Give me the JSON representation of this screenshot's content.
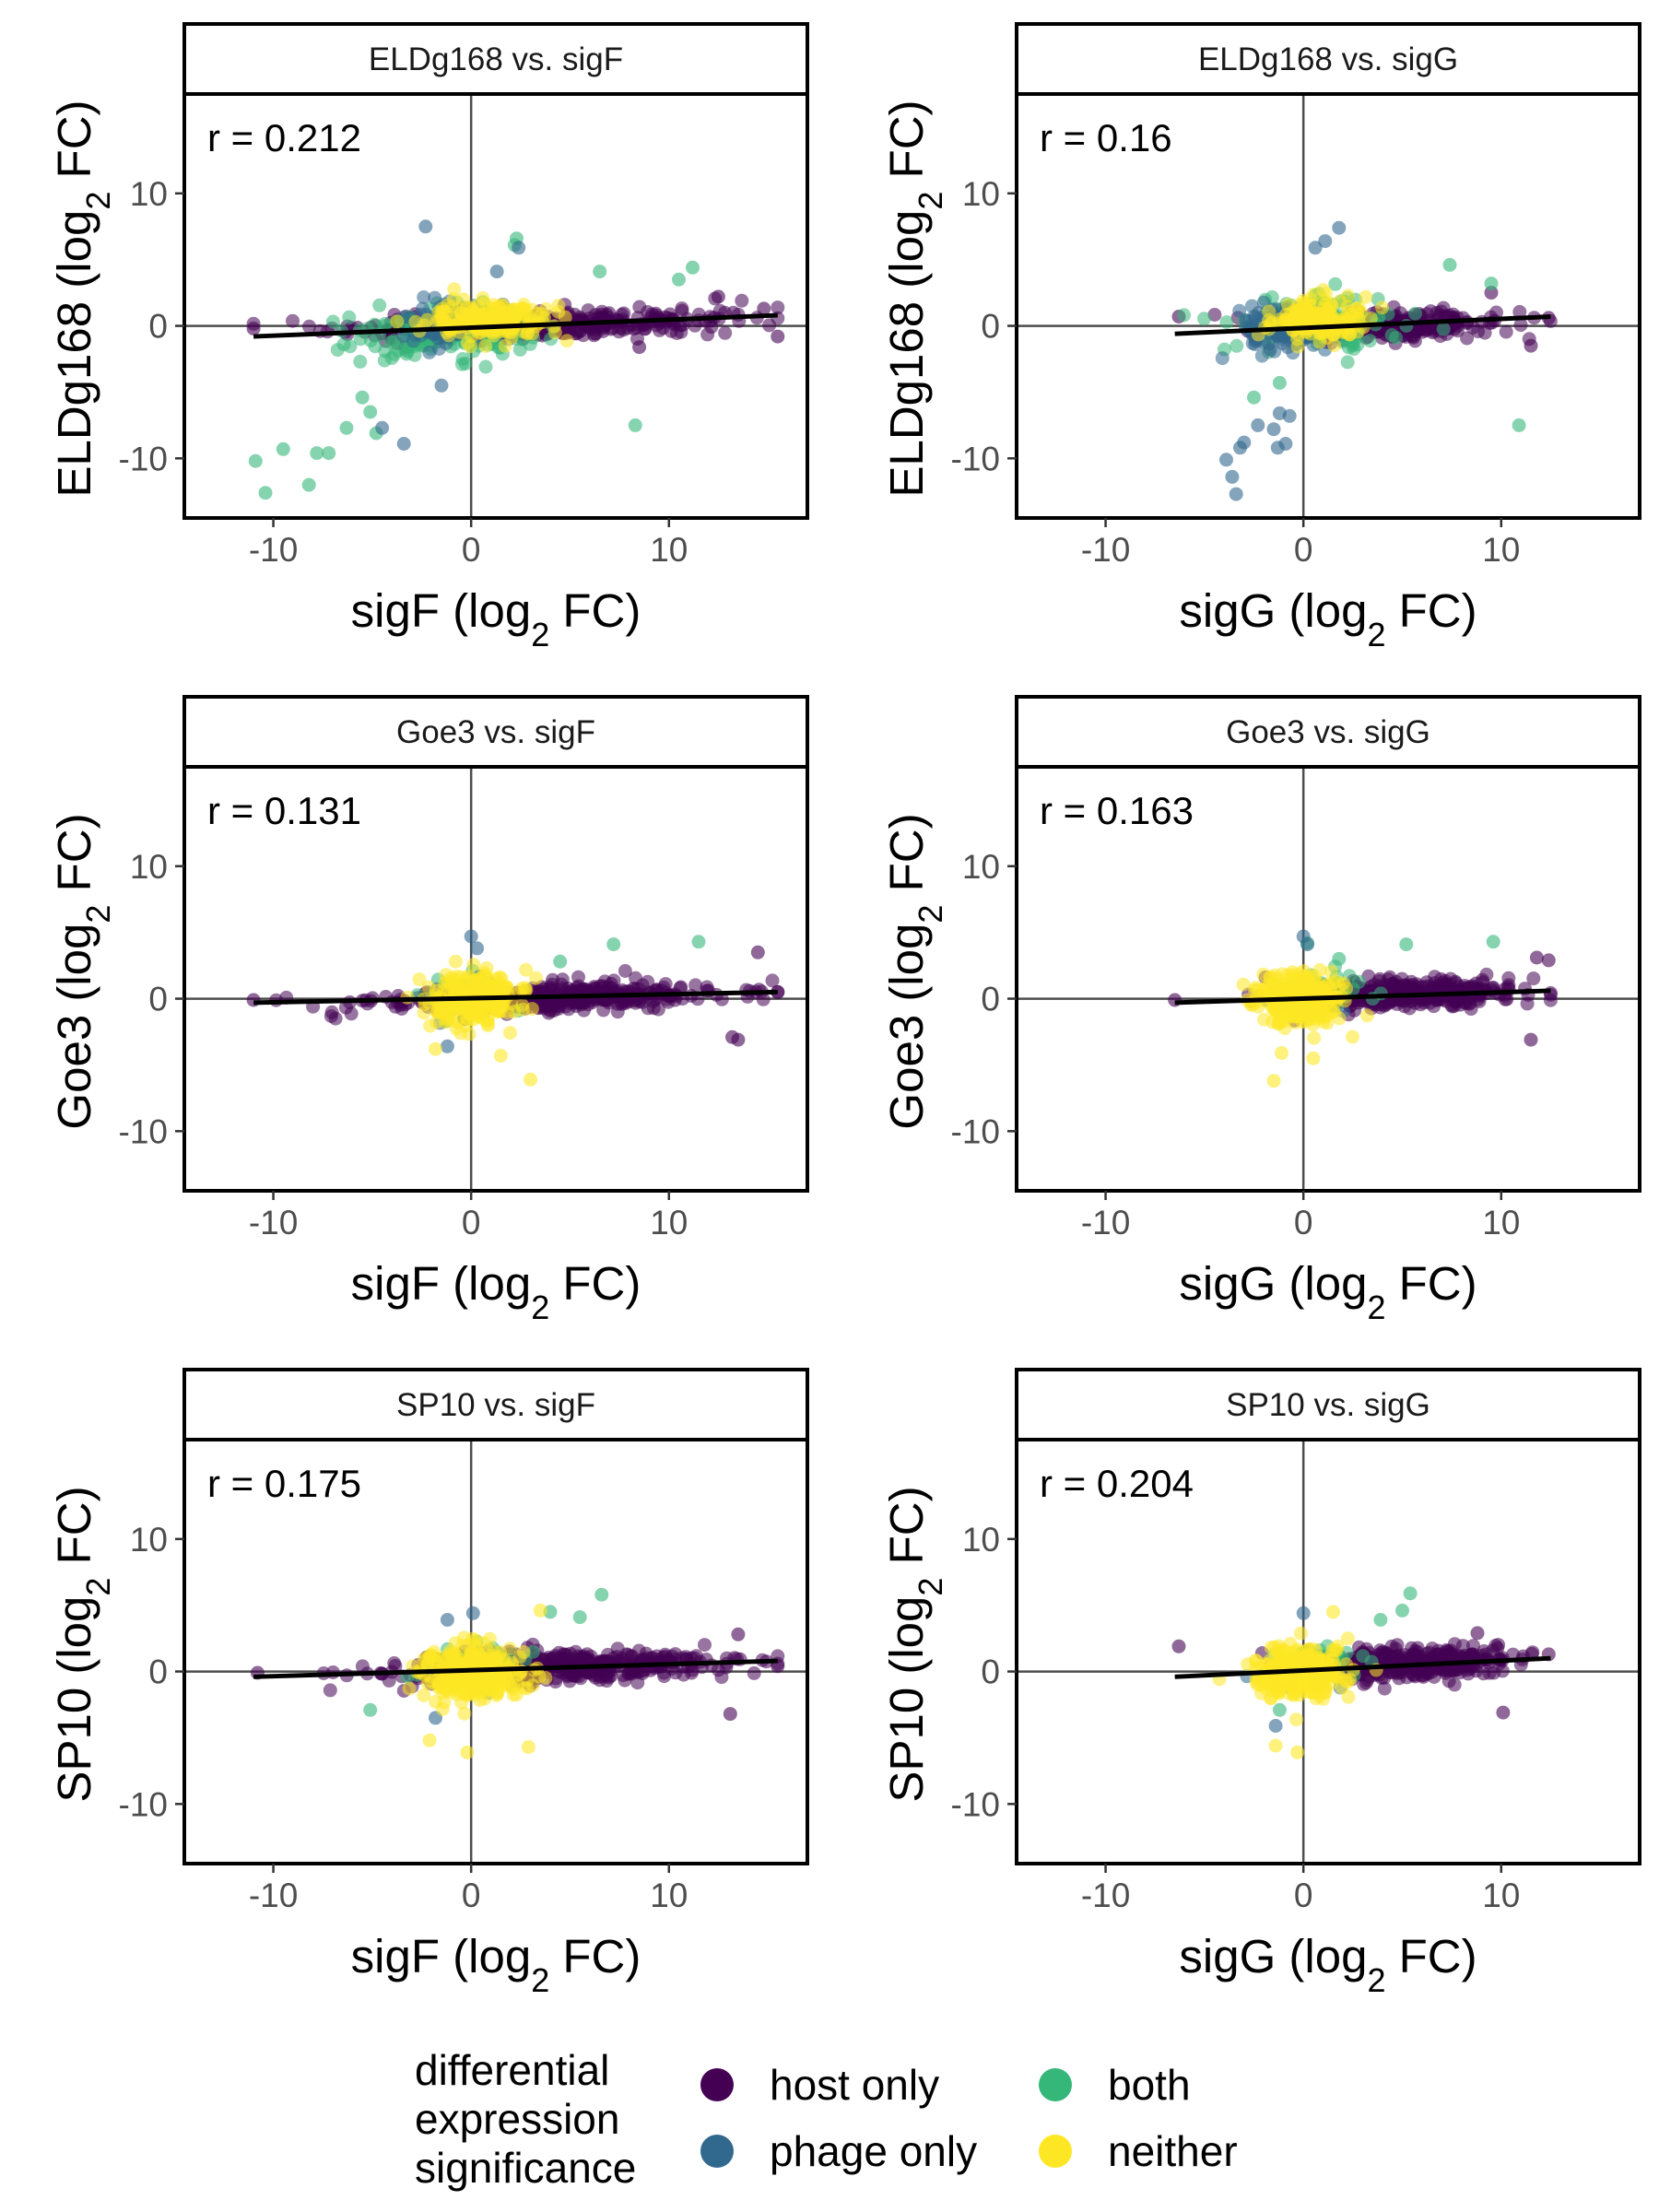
{
  "colors": {
    "host only": "#440154",
    "phage only": "#31688E",
    "both": "#35B779",
    "neither": "#FDE725",
    "axis_line": "#4d4d4d",
    "fit_line": "#000000"
  },
  "legend": {
    "title_lines": [
      "differential",
      "expression",
      "significance"
    ],
    "items": [
      {
        "label": "host only",
        "color": "#440154"
      },
      {
        "label": "phage only",
        "color": "#31688E"
      },
      {
        "label": "both",
        "color": "#35B779"
      },
      {
        "label": "neither",
        "color": "#FDE725"
      }
    ]
  },
  "chart_data": [
    {
      "type": "scatter",
      "title": "ELDg168 vs. sigF",
      "annotation": "r = 0.212",
      "xlabel": {
        "main": "sigF (log",
        "sub": "2",
        "tail": " FC)"
      },
      "ylabel": {
        "main": "ELDg168 (log",
        "sub": "2",
        "tail": " FC)"
      },
      "xlim": [
        -14.5,
        17
      ],
      "ylim": [
        -14.5,
        17.5
      ],
      "xticks": [
        -10,
        0,
        10
      ],
      "yticks": [
        -10,
        0,
        10
      ],
      "x_range": [
        -11,
        15.5
      ],
      "fit_line": {
        "x": [
          -11,
          15.5
        ],
        "y": [
          -0.8,
          0.8
        ]
      },
      "series": [
        {
          "name": "host only",
          "center": [
            3,
            0
          ],
          "spread": [
            7.5,
            0.8
          ],
          "count": 380,
          "seed": 11,
          "extra_points": [
            [
              15.5,
              -0.8
            ],
            [
              14.8,
              1.3
            ],
            [
              -11,
              -0.2
            ],
            [
              12.5,
              2.2
            ],
            [
              8.5,
              -1.6
            ]
          ]
        },
        {
          "name": "both",
          "center": [
            -1.5,
            -0.4
          ],
          "spread": [
            4,
            1.6
          ],
          "count": 140,
          "seed": 12,
          "extra_points": [
            [
              -10.9,
              -10.2
            ],
            [
              -10.4,
              -12.6
            ],
            [
              -9.5,
              -9.3
            ],
            [
              -8.2,
              -12
            ],
            [
              -7.8,
              -9.6
            ],
            [
              -7.2,
              -9.6
            ],
            [
              -6.3,
              -7.7
            ],
            [
              -5.5,
              -5.4
            ],
            [
              -5.1,
              -6.5
            ],
            [
              -4.8,
              -8.1
            ],
            [
              2.2,
              6.1
            ],
            [
              2.3,
              6.6
            ],
            [
              11.2,
              4.4
            ],
            [
              8.3,
              -7.5
            ],
            [
              6.5,
              4.1
            ],
            [
              10.5,
              3.5
            ]
          ]
        },
        {
          "name": "phage only",
          "center": [
            -1.5,
            0.5
          ],
          "spread": [
            2.2,
            1.4
          ],
          "count": 90,
          "seed": 13,
          "extra_points": [
            [
              -2.3,
              7.5
            ],
            [
              2.4,
              5.9
            ],
            [
              -3.4,
              -8.9
            ],
            [
              -4.5,
              -7.7
            ],
            [
              1.3,
              4.1
            ],
            [
              -1.5,
              -4.5
            ]
          ]
        },
        {
          "name": "neither",
          "center": [
            1,
            0.5
          ],
          "spread": [
            2.6,
            1.2
          ],
          "count": 190,
          "seed": 14,
          "extra_points": []
        }
      ]
    },
    {
      "type": "scatter",
      "title": "ELDg168 vs. sigG",
      "annotation": "r = 0.16",
      "xlabel": {
        "main": "sigG (log",
        "sub": "2",
        "tail": " FC)"
      },
      "ylabel": {
        "main": "ELDg168 (log",
        "sub": "2",
        "tail": " FC)"
      },
      "xlim": [
        -14.5,
        17
      ],
      "ylim": [
        -14.5,
        17.5
      ],
      "xticks": [
        -10,
        0,
        10
      ],
      "yticks": [
        -10,
        0,
        10
      ],
      "x_range": [
        -6.5,
        12.5
      ],
      "fit_line": {
        "x": [
          -6.5,
          12.5
        ],
        "y": [
          -0.6,
          0.7
        ]
      },
      "series": [
        {
          "name": "host only",
          "center": [
            4,
            0
          ],
          "spread": [
            5,
            0.9
          ],
          "count": 320,
          "seed": 21,
          "extra_points": [
            [
              12.4,
              0.6
            ],
            [
              -6.3,
              0.7
            ],
            [
              11.5,
              -1.5
            ],
            [
              9.5,
              2.5
            ]
          ]
        },
        {
          "name": "both",
          "center": [
            0.5,
            0.5
          ],
          "spread": [
            3.5,
            1.6
          ],
          "count": 120,
          "seed": 22,
          "extra_points": [
            [
              10.9,
              -7.5
            ],
            [
              7.4,
              4.6
            ],
            [
              -2.5,
              -5.4
            ],
            [
              -1.2,
              -4.3
            ],
            [
              9.5,
              3.2
            ]
          ]
        },
        {
          "name": "phage only",
          "center": [
            -1,
            0
          ],
          "spread": [
            2,
            1.6
          ],
          "count": 110,
          "seed": 23,
          "extra_points": [
            [
              -3.4,
              -12.7
            ],
            [
              -3.6,
              -11.4
            ],
            [
              -3.9,
              -10.1
            ],
            [
              -3.2,
              -9.2
            ],
            [
              -1.3,
              -9.2
            ],
            [
              -1.5,
              -7.8
            ],
            [
              -1.2,
              -6.6
            ],
            [
              -0.9,
              -8.9
            ],
            [
              -3,
              -8.8
            ],
            [
              1.8,
              7.4
            ],
            [
              1.1,
              6.4
            ],
            [
              0.6,
              5.9
            ],
            [
              -0.7,
              -6.8
            ],
            [
              -2.3,
              -7.5
            ]
          ]
        },
        {
          "name": "neither",
          "center": [
            0.5,
            0.5
          ],
          "spread": [
            2,
            1.2
          ],
          "count": 170,
          "seed": 24,
          "extra_points": []
        }
      ]
    },
    {
      "type": "scatter",
      "title": "Goe3 vs. sigF",
      "annotation": "r = 0.131",
      "xlabel": {
        "main": "sigF (log",
        "sub": "2",
        "tail": " FC)"
      },
      "ylabel": {
        "main": "Goe3 (log",
        "sub": "2",
        "tail": " FC)"
      },
      "xlim": [
        -14.5,
        17
      ],
      "ylim": [
        -14.5,
        17.5
      ],
      "xticks": [
        -10,
        0,
        10
      ],
      "yticks": [
        -10,
        0,
        10
      ],
      "x_range": [
        -11,
        15.5
      ],
      "fit_line": {
        "x": [
          -11,
          15.5
        ],
        "y": [
          -0.3,
          0.5
        ]
      },
      "series": [
        {
          "name": "host only",
          "center": [
            4,
            0
          ],
          "spread": [
            7,
            0.8
          ],
          "count": 480,
          "seed": 31,
          "extra_points": [
            [
              -11,
              -0.1
            ],
            [
              15.5,
              0.5
            ],
            [
              13.5,
              -3.1
            ],
            [
              13.2,
              -2.9
            ],
            [
              14.5,
              3.5
            ]
          ]
        },
        {
          "name": "both",
          "center": [
            0,
            0.5
          ],
          "spread": [
            2,
            1.2
          ],
          "count": 30,
          "seed": 32,
          "extra_points": [
            [
              7.2,
              4.1
            ],
            [
              11.5,
              4.3
            ],
            [
              4.5,
              2.8
            ]
          ]
        },
        {
          "name": "phage only",
          "center": [
            0,
            0
          ],
          "spread": [
            1.5,
            1.2
          ],
          "count": 35,
          "seed": 33,
          "extra_points": [
            [
              0,
              4.7
            ],
            [
              -1.2,
              -3.6
            ],
            [
              0.3,
              3.8
            ]
          ]
        },
        {
          "name": "neither",
          "center": [
            0,
            0
          ],
          "spread": [
            1.8,
            1.5
          ],
          "count": 300,
          "seed": 34,
          "extra_points": [
            [
              3,
              -6.1
            ],
            [
              1.5,
              -4.3
            ],
            [
              -1.8,
              -3.8
            ]
          ]
        }
      ]
    },
    {
      "type": "scatter",
      "title": "Goe3 vs. sigG",
      "annotation": "r = 0.163",
      "xlabel": {
        "main": "sigG (log",
        "sub": "2",
        "tail": " FC)"
      },
      "ylabel": {
        "main": "Goe3 (log",
        "sub": "2",
        "tail": " FC)"
      },
      "xlim": [
        -14.5,
        17
      ],
      "ylim": [
        -14.5,
        17.5
      ],
      "xticks": [
        -10,
        0,
        10
      ],
      "yticks": [
        -10,
        0,
        10
      ],
      "x_range": [
        -6.5,
        12.5
      ],
      "fit_line": {
        "x": [
          -6.5,
          12.5
        ],
        "y": [
          -0.3,
          0.6
        ]
      },
      "series": [
        {
          "name": "host only",
          "center": [
            5,
            0.3
          ],
          "spread": [
            4.5,
            0.9
          ],
          "count": 420,
          "seed": 41,
          "extra_points": [
            [
              -6.5,
              -0.1
            ],
            [
              11.8,
              3.1
            ],
            [
              12.4,
              2.9
            ],
            [
              11.5,
              -3.1
            ]
          ]
        },
        {
          "name": "both",
          "center": [
            1,
            1
          ],
          "spread": [
            2,
            1.2
          ],
          "count": 25,
          "seed": 42,
          "extra_points": [
            [
              5.2,
              4.1
            ],
            [
              9.6,
              4.3
            ],
            [
              0.2,
              4.2
            ],
            [
              1.8,
              3
            ]
          ]
        },
        {
          "name": "phage only",
          "center": [
            0,
            0
          ],
          "spread": [
            1.5,
            1.2
          ],
          "count": 30,
          "seed": 43,
          "extra_points": [
            [
              0,
              4.7
            ],
            [
              0.2,
              4.1
            ]
          ]
        },
        {
          "name": "neither",
          "center": [
            -0.3,
            0
          ],
          "spread": [
            1.8,
            1.5
          ],
          "count": 300,
          "seed": 44,
          "extra_points": [
            [
              -1.5,
              -6.2
            ],
            [
              0.5,
              -4.5
            ],
            [
              -1.1,
              -4.1
            ]
          ]
        }
      ]
    },
    {
      "type": "scatter",
      "title": "SP10 vs. sigF",
      "annotation": "r = 0.175",
      "xlabel": {
        "main": "sigF (log",
        "sub": "2",
        "tail": " FC)"
      },
      "ylabel": {
        "main": "SP10 (log",
        "sub": "2",
        "tail": " FC)"
      },
      "xlim": [
        -14.5,
        17
      ],
      "ylim": [
        -14.5,
        17.5
      ],
      "xticks": [
        -10,
        0,
        10
      ],
      "yticks": [
        -10,
        0,
        10
      ],
      "x_range": [
        -11,
        15.5
      ],
      "fit_line": {
        "x": [
          -11,
          15.5
        ],
        "y": [
          -0.4,
          0.8
        ]
      },
      "series": [
        {
          "name": "host only",
          "center": [
            4,
            0.2
          ],
          "spread": [
            7,
            0.9
          ],
          "count": 480,
          "seed": 51,
          "extra_points": [
            [
              -10.8,
              -0.1
            ],
            [
              15.5,
              0.4
            ],
            [
              13.1,
              -3.2
            ],
            [
              13.5,
              2.8
            ]
          ]
        },
        {
          "name": "both",
          "center": [
            0.5,
            1
          ],
          "spread": [
            2.5,
            1.2
          ],
          "count": 30,
          "seed": 52,
          "extra_points": [
            [
              6.6,
              5.8
            ],
            [
              5.5,
              4.1
            ],
            [
              -5.1,
              -2.9
            ],
            [
              4,
              4.5
            ]
          ]
        },
        {
          "name": "phage only",
          "center": [
            0,
            0
          ],
          "spread": [
            1.5,
            1.2
          ],
          "count": 30,
          "seed": 53,
          "extra_points": [
            [
              0.1,
              4.4
            ],
            [
              -1.8,
              -3.5
            ],
            [
              -1.2,
              3.9
            ]
          ]
        },
        {
          "name": "neither",
          "center": [
            0,
            0
          ],
          "spread": [
            2,
            1.6
          ],
          "count": 320,
          "seed": 54,
          "extra_points": [
            [
              -0.2,
              -6.1
            ],
            [
              2.9,
              -5.7
            ],
            [
              -2.1,
              -5.2
            ],
            [
              3.5,
              4.6
            ]
          ]
        }
      ]
    },
    {
      "type": "scatter",
      "title": "SP10 vs. sigG",
      "annotation": "r = 0.204",
      "xlabel": {
        "main": "sigG (log",
        "sub": "2",
        "tail": " FC)"
      },
      "ylabel": {
        "main": "SP10 (log",
        "sub": "2",
        "tail": " FC)"
      },
      "xlim": [
        -14.5,
        17
      ],
      "ylim": [
        -14.5,
        17.5
      ],
      "xticks": [
        -10,
        0,
        10
      ],
      "yticks": [
        -10,
        0,
        10
      ],
      "x_range": [
        -6.5,
        12.5
      ],
      "fit_line": {
        "x": [
          -6.5,
          12.5
        ],
        "y": [
          -0.4,
          1
        ]
      },
      "series": [
        {
          "name": "host only",
          "center": [
            5,
            0.5
          ],
          "spread": [
            4.5,
            0.9
          ],
          "count": 400,
          "seed": 61,
          "extra_points": [
            [
              -6.3,
              1.9
            ],
            [
              12.4,
              1.3
            ],
            [
              10.1,
              -3.1
            ],
            [
              8.8,
              2.9
            ]
          ]
        },
        {
          "name": "both",
          "center": [
            1,
            1
          ],
          "spread": [
            2,
            1.2
          ],
          "count": 30,
          "seed": 62,
          "extra_points": [
            [
              5.4,
              5.9
            ],
            [
              5,
              4.6
            ],
            [
              3.9,
              3.9
            ],
            [
              -1.2,
              -2.9
            ]
          ]
        },
        {
          "name": "phage only",
          "center": [
            0,
            0
          ],
          "spread": [
            1.5,
            1.2
          ],
          "count": 30,
          "seed": 63,
          "extra_points": [
            [
              0,
              4.4
            ],
            [
              -1.4,
              -4.1
            ]
          ]
        },
        {
          "name": "neither",
          "center": [
            -0.3,
            0
          ],
          "spread": [
            1.8,
            1.6
          ],
          "count": 320,
          "seed": 64,
          "extra_points": [
            [
              -0.3,
              -6.1
            ],
            [
              -1.4,
              -5.6
            ],
            [
              1.5,
              4.5
            ]
          ]
        }
      ]
    }
  ]
}
